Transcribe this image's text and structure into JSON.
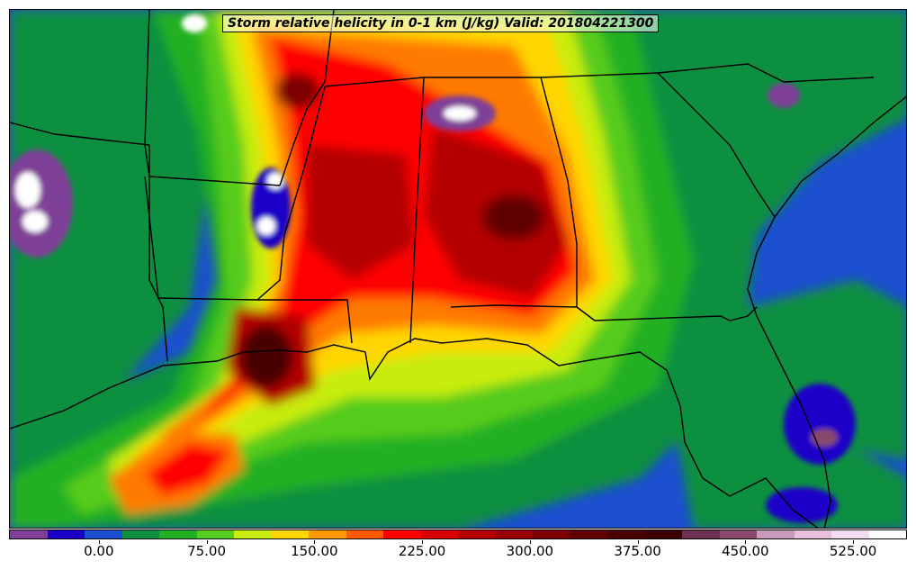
{
  "title": "Storm relative helicity in 0-1 km (J/kg) Valid: 201804221300",
  "colorbar": {
    "colors": [
      "#7f3f98",
      "#1c00c8",
      "#1c4fd0",
      "#0f8f3f",
      "#21b021",
      "#56cc1c",
      "#c8ec10",
      "#ffd500",
      "#ff9a00",
      "#ff5a00",
      "#ff0000",
      "#d80000",
      "#b40000",
      "#9a0000",
      "#7d0000",
      "#600000",
      "#4a0000",
      "#3a0000",
      "#6e3050",
      "#8a4a6a",
      "#c59abb",
      "#e6c0dc",
      "#f3dcee",
      "#ffffff"
    ],
    "tick_values": [
      0,
      75,
      150,
      225,
      300,
      375,
      450,
      525
    ],
    "tick_labels": [
      "0.00",
      "75.00",
      "150.00",
      "225.00",
      "300.00",
      "375.00",
      "450.00",
      "525.00"
    ],
    "min": -62.5,
    "max": 562.5
  },
  "field_colors": {
    "background": "#1c4fd0",
    "deep_blue": "#1c00c8",
    "purple": "#7f3f98",
    "white": "#ffffff",
    "green": "#0f8f3f",
    "light_green": "#21b021",
    "lime": "#56cc1c",
    "yellow_green": "#c8ec10",
    "yellow": "#ffd500",
    "orange": "#ff7a00",
    "red": "#ff0000",
    "dark_red": "#b40000",
    "maroon": "#600000"
  }
}
